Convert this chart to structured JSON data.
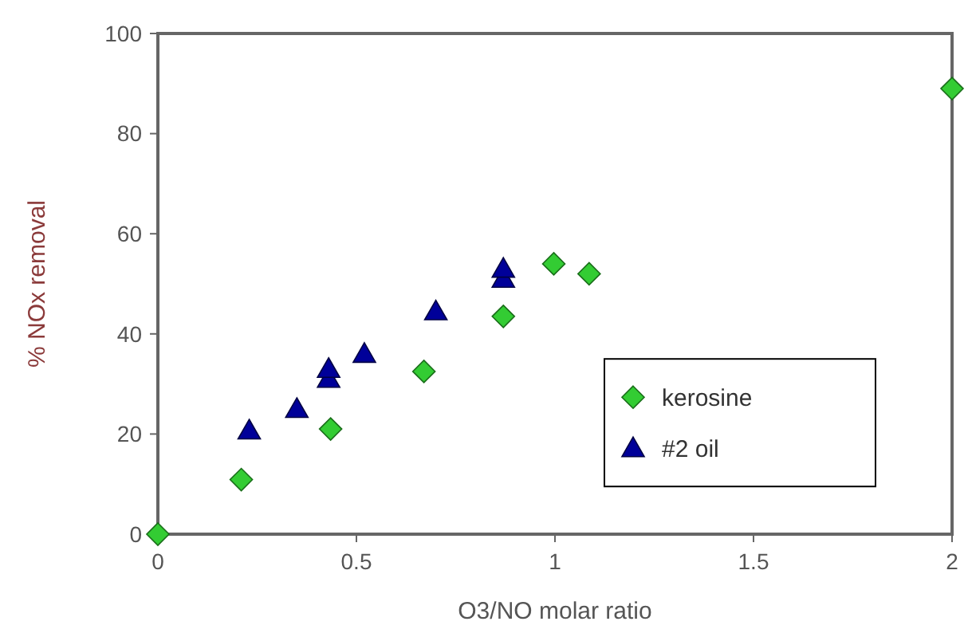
{
  "chart_data": {
    "type": "scatter",
    "xlabel": "O3/NO molar ratio",
    "ylabel": "% NOx removal",
    "xlim": [
      0,
      2
    ],
    "xticks": [
      0,
      0.5,
      1,
      1.5,
      2
    ],
    "ylim": [
      0,
      100
    ],
    "yticks": [
      0,
      20,
      40,
      60,
      80,
      100
    ],
    "grid": false,
    "legend": "right",
    "series": [
      {
        "name": "kerosine",
        "color": "#33cc33",
        "marker": "diamond",
        "x": [
          0,
          0.21,
          0.435,
          0.67,
          0.87,
          0.997,
          1.086,
          2
        ],
        "values": [
          0,
          10.9,
          21,
          32.5,
          43.5,
          54,
          52,
          89
        ]
      },
      {
        "name": "#2 oil",
        "color": "#000099",
        "marker": "triangle",
        "x": [
          0.23,
          0.35,
          0.43,
          0.43,
          0.52,
          0.7,
          0.87,
          0.87
        ],
        "values": [
          20.7,
          25,
          31,
          33,
          36,
          44.5,
          51,
          53
        ]
      }
    ]
  }
}
